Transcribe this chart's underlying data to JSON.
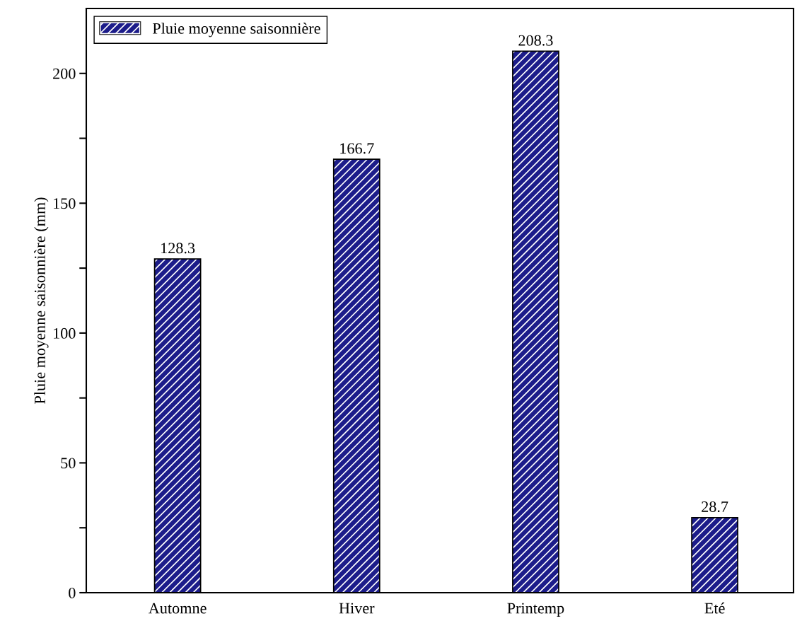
{
  "chart_data": {
    "type": "bar",
    "ylabel": "Pluie moyenne saisonnière (mm)",
    "categories": [
      "Automne",
      "Hiver",
      "Printemp",
      "Eté"
    ],
    "series": [
      {
        "name": "Pluie moyenne saisonnière",
        "color": "#1c1c8a",
        "values": [
          128.3,
          166.7,
          208.3,
          28.7
        ]
      }
    ],
    "ylim": [
      0,
      225
    ],
    "yticks": [
      0,
      {
        "value": 25,
        "label": null
      },
      50,
      {
        "value": 75,
        "label": null
      },
      100,
      {
        "value": 125,
        "label": null
      },
      150,
      {
        "value": 175,
        "label": null
      },
      200
    ],
    "data_labels": true,
    "legend": "top left",
    "grid": false
  }
}
